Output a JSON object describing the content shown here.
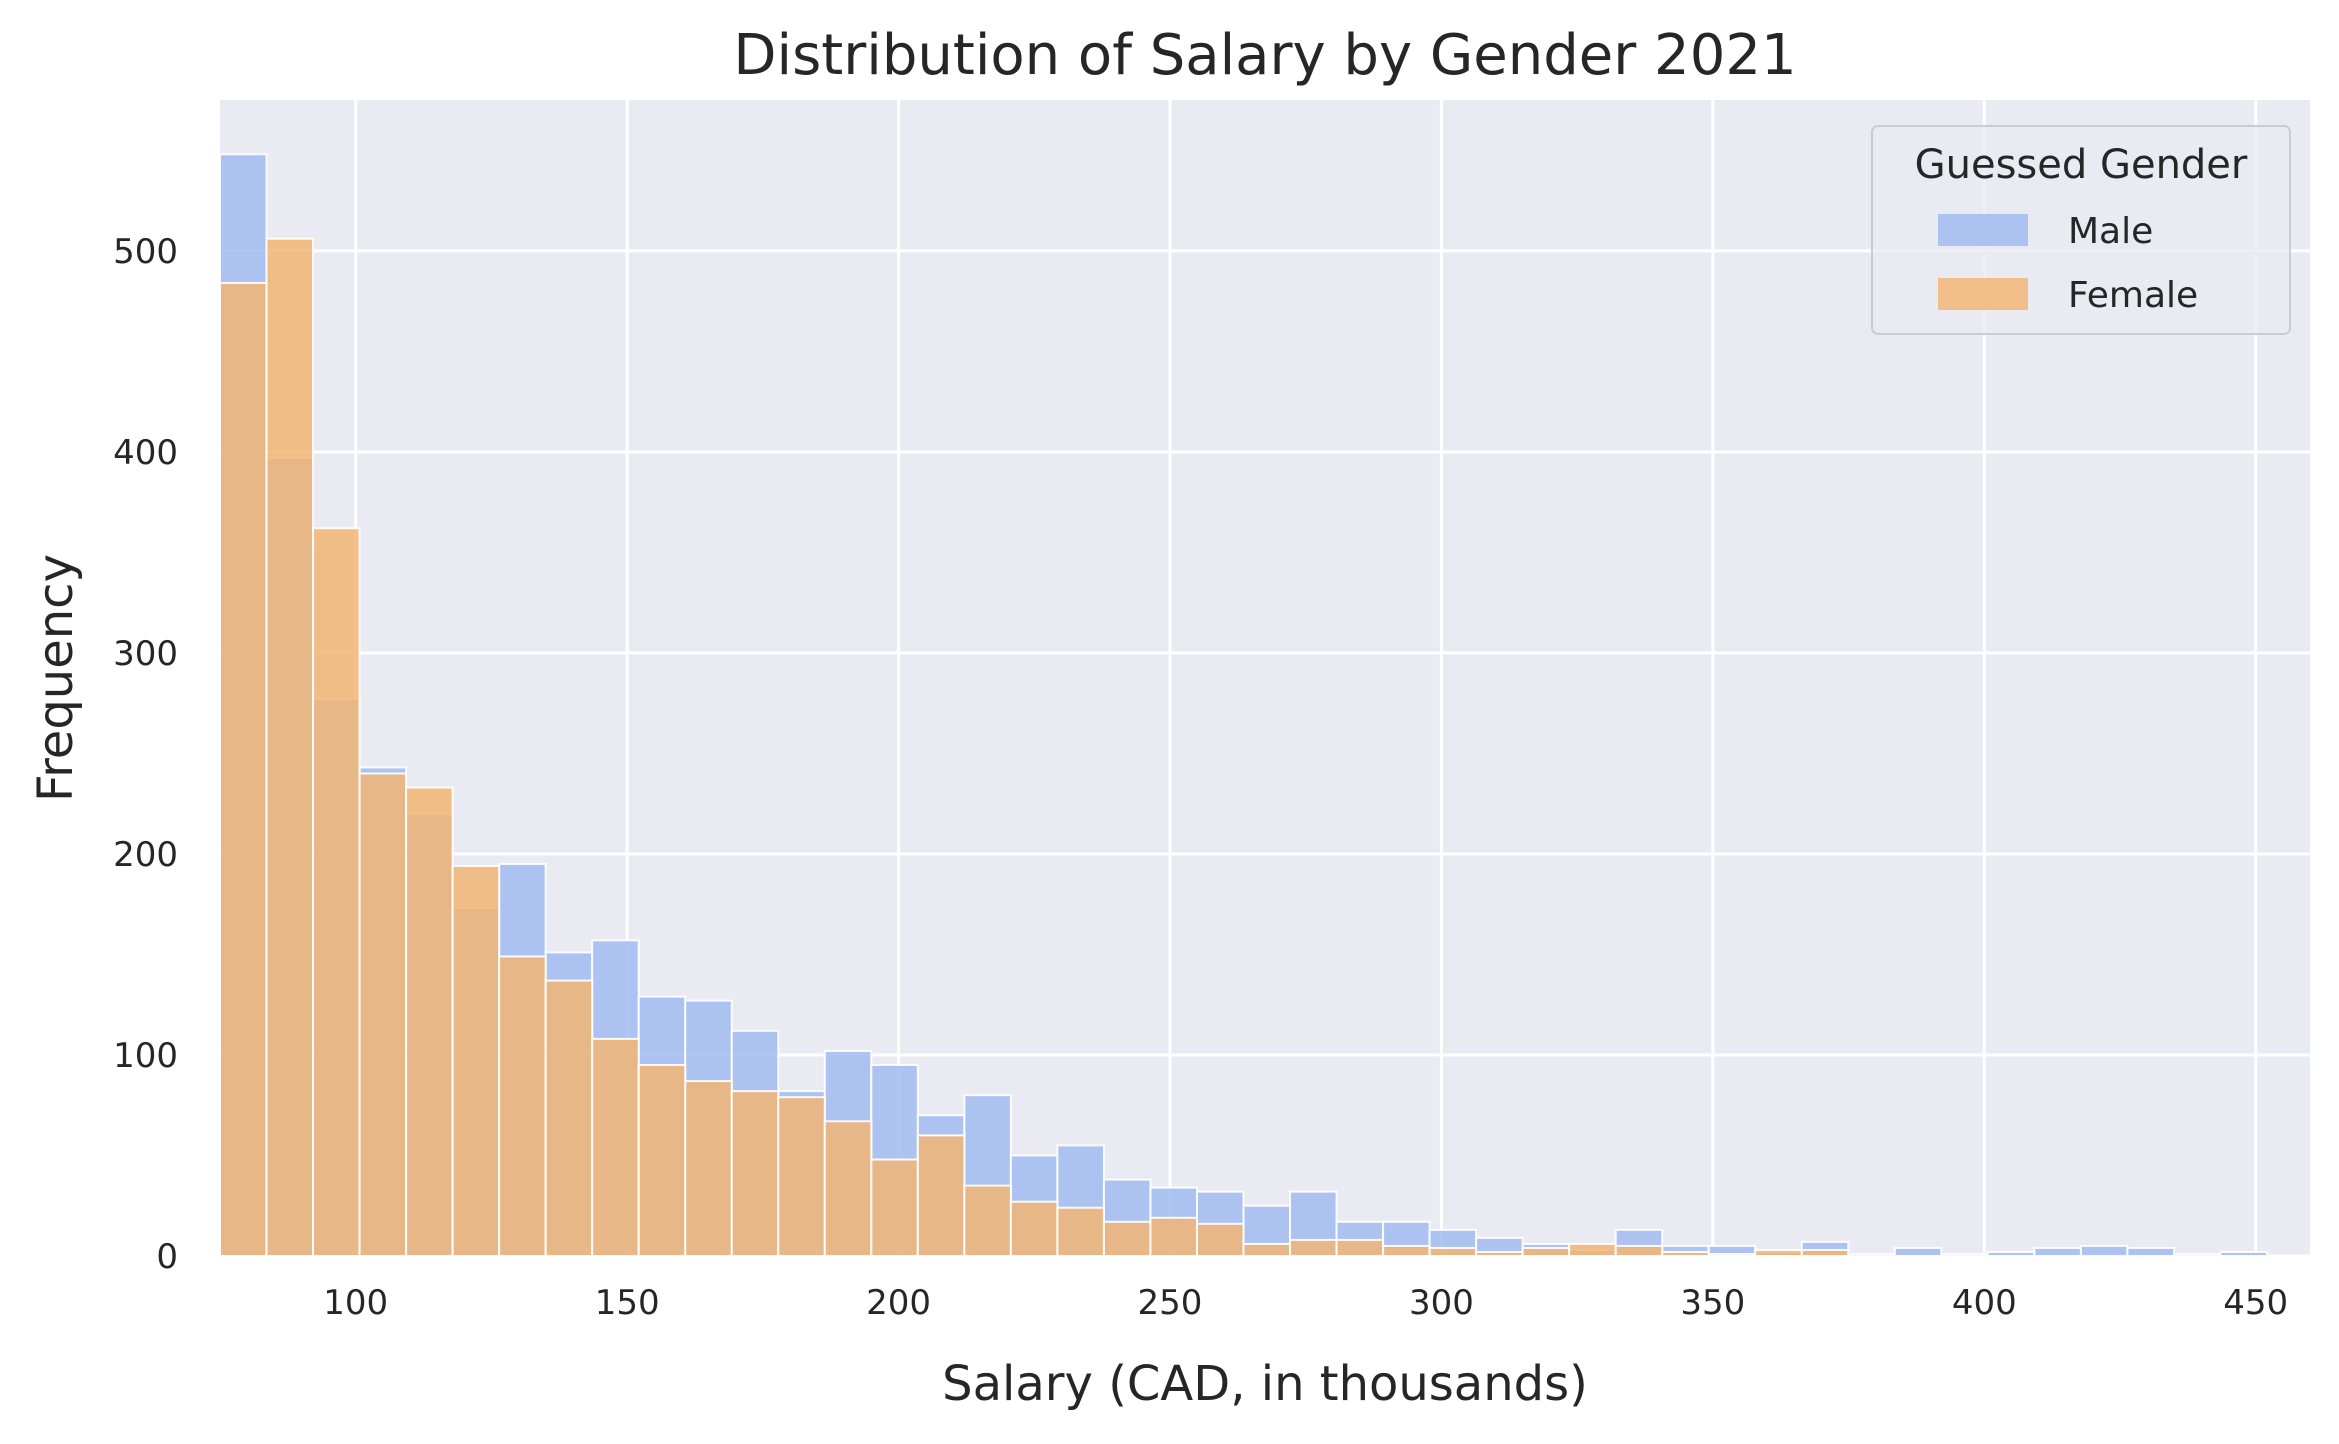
{
  "chart_data": {
    "type": "bar",
    "title": "Distribution of Salary by Gender 2021",
    "xlabel": "Salary (CAD, in thousands)",
    "ylabel": "Frequency",
    "xlim": [
      75,
      460
    ],
    "ylim": [
      0,
      575
    ],
    "x_ticks": [
      100,
      150,
      200,
      250,
      300,
      350,
      400,
      450
    ],
    "y_ticks": [
      0,
      100,
      200,
      300,
      400,
      500
    ],
    "grid": true,
    "legend": {
      "title": "Guessed Gender",
      "placement": "top-right"
    },
    "bin_start": 75,
    "bin_width": 8.57,
    "series": [
      {
        "name": "Male",
        "color": "#a1bbf0",
        "opacity": 0.85,
        "values": [
          548,
          397,
          277,
          243,
          220,
          173,
          195,
          151,
          157,
          129,
          127,
          112,
          82,
          102,
          95,
          70,
          80,
          50,
          55,
          38,
          34,
          32,
          25,
          32,
          17,
          17,
          13,
          9,
          6,
          3,
          13,
          5,
          5,
          2,
          7,
          1,
          4,
          1,
          2,
          4,
          5,
          4,
          1,
          2
        ]
      },
      {
        "name": "Female",
        "color": "#f2b574",
        "opacity": 0.85,
        "values": [
          484,
          506,
          362,
          240,
          233,
          194,
          149,
          137,
          108,
          95,
          87,
          82,
          79,
          67,
          48,
          60,
          35,
          27,
          24,
          17,
          19,
          16,
          6,
          8,
          8,
          5,
          4,
          2,
          4,
          6,
          5,
          2,
          1,
          3,
          3,
          0,
          0,
          0,
          0,
          0,
          0,
          0,
          0,
          0
        ]
      }
    ]
  },
  "style": {
    "plot_background": "#eaeaf2",
    "grid_color": "#ffffff",
    "text_color": "#262626",
    "bar_edge": "#ffffff"
  }
}
